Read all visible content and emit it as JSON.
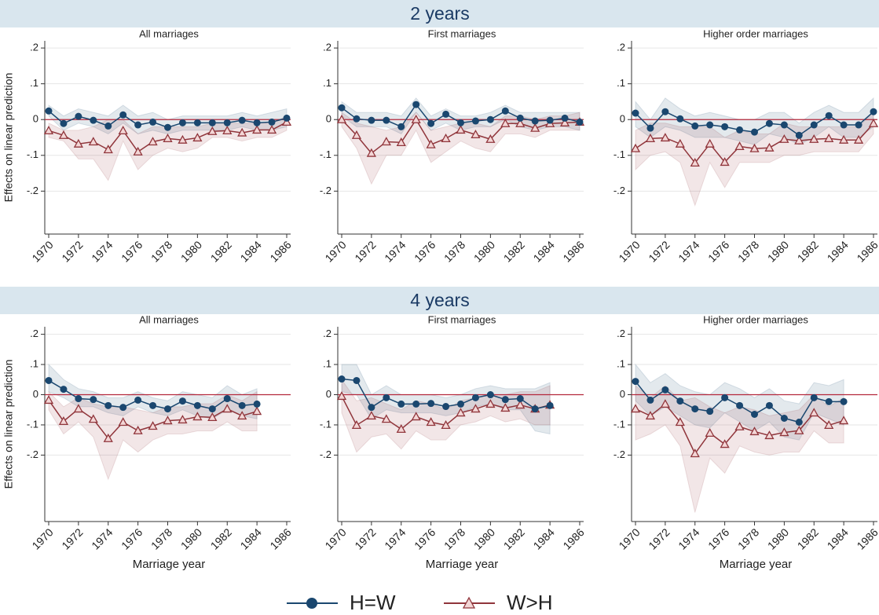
{
  "chart_data": {
    "type": "line",
    "x": [
      1970,
      1971,
      1972,
      1973,
      1974,
      1975,
      1976,
      1977,
      1978,
      1979,
      1980,
      1981,
      1982,
      1983,
      1984,
      1985,
      1986
    ],
    "xlim": [
      1970,
      1986
    ],
    "xticks": [
      1970,
      1972,
      1974,
      1976,
      1978,
      1980,
      1982,
      1984,
      1986
    ],
    "x_label": "Marriage year",
    "y_label": "Effects on linear prediction",
    "grid": true,
    "reference_line": {
      "value": 0,
      "color": "#b4283c"
    },
    "series": [
      {
        "name": "H=W",
        "color": "#1a476f",
        "marker": "circle"
      },
      {
        "name": "W>H",
        "color": "#90353b",
        "marker": "triangle"
      }
    ],
    "rows": [
      {
        "title": "2 years",
        "ylim": [
          -0.32,
          0.22
        ],
        "yticks": [
          {
            "value": 0.2,
            "label": ".2"
          },
          {
            "value": 0.1,
            "label": ".1"
          },
          0,
          {
            "value": -0.1,
            "label": "-.1"
          },
          {
            "value": -0.2,
            "label": "-.2"
          }
        ],
        "panels": [
          {
            "title": "All marriages",
            "values": [
              [
                0.024,
                -0.011,
                0.009,
                -0.002,
                -0.018,
                0.013,
                -0.015,
                -0.007,
                -0.022,
                -0.009,
                -0.009,
                -0.009,
                -0.009,
                -0.002,
                -0.009,
                -0.007,
                0.004
              ],
              [
                -0.031,
                -0.044,
                -0.068,
                -0.062,
                -0.084,
                -0.031,
                -0.09,
                -0.062,
                -0.053,
                -0.057,
                -0.051,
                -0.033,
                -0.031,
                -0.037,
                -0.029,
                -0.029,
                -0.007
              ]
            ],
            "lower": [
              [
                0.01,
                -0.03,
                -0.01,
                -0.02,
                -0.04,
                -0.01,
                -0.04,
                -0.03,
                -0.04,
                -0.03,
                -0.03,
                -0.03,
                -0.03,
                -0.02,
                -0.03,
                -0.03,
                -0.02
              ],
              [
                -0.05,
                -0.06,
                -0.11,
                -0.11,
                -0.17,
                -0.06,
                -0.14,
                -0.1,
                -0.08,
                -0.09,
                -0.08,
                -0.05,
                -0.05,
                -0.06,
                -0.05,
                -0.05,
                -0.03
              ]
            ],
            "upper": [
              [
                0.04,
                0.01,
                0.03,
                0.02,
                0.01,
                0.04,
                0.01,
                0.02,
                0,
                0.01,
                0.01,
                0.01,
                0.01,
                0.02,
                0.01,
                0.02,
                0.03
              ],
              [
                -0.01,
                -0.03,
                -0.03,
                -0.02,
                0,
                0,
                -0.04,
                -0.02,
                -0.02,
                -0.02,
                -0.02,
                -0.01,
                -0.01,
                -0.01,
                -0.01,
                -0.01,
                0.01
              ]
            ]
          },
          {
            "title": "First marriages",
            "values": [
              [
                0.033,
                0.002,
                -0.002,
                -0.002,
                -0.02,
                0.042,
                -0.011,
                0.015,
                -0.009,
                -0.004,
                0,
                0.024,
                0.004,
                -0.004,
                -0.002,
                0.004,
                -0.007
              ],
              [
                0,
                -0.044,
                -0.094,
                -0.062,
                -0.064,
                0,
                -0.07,
                -0.053,
                -0.029,
                -0.042,
                -0.055,
                -0.011,
                -0.011,
                -0.024,
                -0.011,
                -0.009,
                -0.007
              ]
            ],
            "lower": [
              [
                0.01,
                -0.02,
                -0.02,
                -0.02,
                -0.04,
                0.02,
                -0.03,
                -0.01,
                -0.03,
                -0.02,
                -0.02,
                0,
                -0.02,
                -0.03,
                -0.02,
                -0.02,
                -0.03
              ],
              [
                -0.02,
                -0.08,
                -0.18,
                -0.1,
                -0.1,
                -0.03,
                -0.12,
                -0.09,
                -0.06,
                -0.08,
                -0.09,
                -0.04,
                -0.04,
                -0.05,
                -0.03,
                -0.03,
                -0.03
              ]
            ],
            "upper": [
              [
                0.05,
                0.02,
                0.02,
                0.02,
                0.01,
                0.06,
                0.01,
                0.03,
                0.01,
                0.01,
                0.02,
                0.04,
                0.02,
                0.02,
                0.02,
                0.02,
                0.02
              ],
              [
                0.02,
                -0.01,
                -0.02,
                -0.03,
                -0.02,
                0.02,
                -0.03,
                -0.02,
                -0.01,
                -0.01,
                -0.02,
                0.01,
                0.01,
                0,
                0.01,
                0.01,
                0.02
              ]
            ]
          },
          {
            "title": "Higher order marriages",
            "values": [
              [
                0.018,
                -0.024,
                0.022,
                0.002,
                -0.018,
                -0.015,
                -0.02,
                -0.029,
                -0.035,
                -0.011,
                -0.015,
                -0.044,
                -0.015,
                0.011,
                -0.015,
                -0.015,
                0.022
              ],
              [
                -0.081,
                -0.053,
                -0.051,
                -0.068,
                -0.121,
                -0.068,
                -0.119,
                -0.075,
                -0.081,
                -0.079,
                -0.055,
                -0.059,
                -0.055,
                -0.053,
                -0.057,
                -0.057,
                -0.011
              ]
            ],
            "lower": [
              [
                -0.02,
                -0.05,
                -0.02,
                -0.03,
                -0.05,
                -0.05,
                -0.05,
                -0.06,
                -0.07,
                -0.04,
                -0.05,
                -0.07,
                -0.05,
                -0.02,
                -0.05,
                -0.05,
                -0.02
              ],
              [
                -0.14,
                -0.1,
                -0.09,
                -0.12,
                -0.24,
                -0.12,
                -0.19,
                -0.12,
                -0.12,
                -0.12,
                -0.1,
                -0.1,
                -0.09,
                -0.09,
                -0.09,
                -0.09,
                -0.04
              ]
            ],
            "upper": [
              [
                0.05,
                0,
                0.06,
                0.03,
                0.01,
                0.02,
                0.01,
                0,
                0,
                0.02,
                0.02,
                -0.01,
                0.02,
                0.04,
                0.02,
                0.02,
                0.06
              ],
              [
                -0.03,
                -0.01,
                -0.01,
                -0.02,
                -0.02,
                -0.02,
                -0.05,
                -0.03,
                -0.04,
                -0.04,
                -0.01,
                -0.02,
                -0.02,
                -0.02,
                -0.02,
                -0.02,
                0.02
              ]
            ]
          }
        ]
      },
      {
        "title": "4 years",
        "ylim": [
          -0.42,
          0.225
        ],
        "yticks": [
          {
            "value": 0.2,
            "label": ".2"
          },
          {
            "value": 0.1,
            "label": ".1"
          },
          0,
          {
            "value": -0.1,
            "label": "-.1"
          },
          {
            "value": -0.2,
            "label": "-.2"
          }
        ],
        "panels": [
          {
            "title": "All marriages",
            "values": [
              [
                0.047,
                0.018,
                -0.013,
                -0.016,
                -0.036,
                -0.042,
                -0.018,
                -0.036,
                -0.047,
                -0.021,
                -0.036,
                -0.047,
                -0.013,
                -0.036,
                -0.031,
                null,
                null
              ],
              [
                -0.018,
                -0.088,
                -0.047,
                -0.081,
                -0.145,
                -0.091,
                -0.119,
                -0.104,
                -0.086,
                -0.083,
                -0.073,
                -0.075,
                -0.047,
                -0.07,
                -0.055,
                null,
                null
              ]
            ],
            "lower": [
              [
                0.01,
                -0.01,
                -0.04,
                -0.04,
                -0.06,
                -0.07,
                -0.04,
                -0.06,
                -0.07,
                -0.05,
                -0.07,
                -0.08,
                -0.05,
                -0.07,
                -0.08,
                null,
                null
              ],
              [
                -0.05,
                -0.13,
                -0.09,
                -0.14,
                -0.28,
                -0.15,
                -0.19,
                -0.15,
                -0.13,
                -0.13,
                -0.12,
                -0.12,
                -0.09,
                -0.12,
                -0.12,
                null,
                null
              ]
            ],
            "upper": [
              [
                0.1,
                0.05,
                0.02,
                0.01,
                -0.01,
                -0.01,
                0.01,
                -0.01,
                -0.02,
                0.01,
                0,
                -0.01,
                0.03,
                0,
                0.02,
                null,
                null
              ],
              [
                0.01,
                -0.04,
                -0.01,
                -0.03,
                -0.04,
                -0.04,
                -0.05,
                -0.06,
                -0.04,
                -0.04,
                -0.03,
                -0.03,
                0,
                -0.02,
                0.01,
                null,
                null
              ]
            ]
          },
          {
            "title": "First marriages",
            "values": [
              [
                0.052,
                0.047,
                -0.042,
                -0.01,
                -0.031,
                -0.031,
                -0.029,
                -0.039,
                -0.031,
                -0.01,
                0,
                -0.016,
                -0.013,
                -0.047,
                -0.036,
                null,
                null
              ],
              [
                -0.005,
                -0.101,
                -0.07,
                -0.081,
                -0.114,
                -0.073,
                -0.091,
                -0.101,
                -0.06,
                -0.047,
                -0.031,
                -0.044,
                -0.034,
                -0.047,
                -0.034,
                null,
                null
              ]
            ],
            "lower": [
              [
                0.01,
                0,
                -0.08,
                -0.05,
                -0.06,
                -0.06,
                -0.06,
                -0.07,
                -0.06,
                -0.04,
                -0.03,
                -0.05,
                -0.05,
                -0.12,
                -0.13,
                null,
                null
              ],
              [
                -0.06,
                -0.19,
                -0.14,
                -0.13,
                -0.18,
                -0.12,
                -0.15,
                -0.15,
                -0.1,
                -0.09,
                -0.07,
                -0.09,
                -0.08,
                -0.1,
                -0.1,
                null,
                null
              ]
            ],
            "upper": [
              [
                0.1,
                0.1,
                0,
                0.03,
                0,
                0,
                0,
                -0.01,
                0,
                0.02,
                0.03,
                0.02,
                0.02,
                0.02,
                0.04,
                null,
                null
              ],
              [
                0.05,
                -0.02,
                -0.01,
                -0.03,
                -0.05,
                -0.02,
                -0.03,
                -0.05,
                -0.02,
                -0.01,
                0,
                0,
                0.01,
                0.01,
                0.03,
                null,
                null
              ]
            ]
          },
          {
            "title": "Higher order marriages",
            "values": [
              [
                0.044,
                -0.018,
                0.016,
                -0.021,
                -0.047,
                -0.055,
                -0.01,
                -0.036,
                -0.065,
                -0.036,
                -0.078,
                -0.091,
                -0.01,
                -0.023,
                -0.023,
                null,
                null
              ],
              [
                -0.047,
                -0.07,
                -0.031,
                -0.091,
                -0.195,
                -0.127,
                -0.164,
                -0.106,
                -0.122,
                -0.135,
                -0.125,
                -0.119,
                -0.06,
                -0.101,
                -0.086,
                null,
                null
              ]
            ],
            "lower": [
              [
                -0.02,
                -0.07,
                -0.04,
                -0.07,
                -0.1,
                -0.11,
                -0.06,
                -0.09,
                -0.12,
                -0.09,
                -0.14,
                -0.15,
                -0.06,
                -0.08,
                -0.1,
                null,
                null
              ],
              [
                -0.15,
                -0.13,
                -0.1,
                -0.17,
                -0.39,
                -0.21,
                -0.26,
                -0.17,
                -0.19,
                -0.2,
                -0.19,
                -0.19,
                -0.12,
                -0.16,
                -0.16,
                null,
                null
              ]
            ],
            "upper": [
              [
                0.1,
                0.04,
                0.07,
                0.03,
                0.01,
                0,
                0.04,
                0.02,
                -0.01,
                0.02,
                -0.02,
                -0.03,
                0.04,
                0.03,
                0.05,
                null,
                null
              ],
              [
                0.03,
                -0.01,
                0.03,
                -0.02,
                -0.01,
                -0.04,
                -0.06,
                -0.04,
                -0.05,
                -0.07,
                -0.06,
                -0.05,
                0,
                -0.04,
                -0.01,
                null,
                null
              ]
            ]
          }
        ]
      }
    ]
  }
}
